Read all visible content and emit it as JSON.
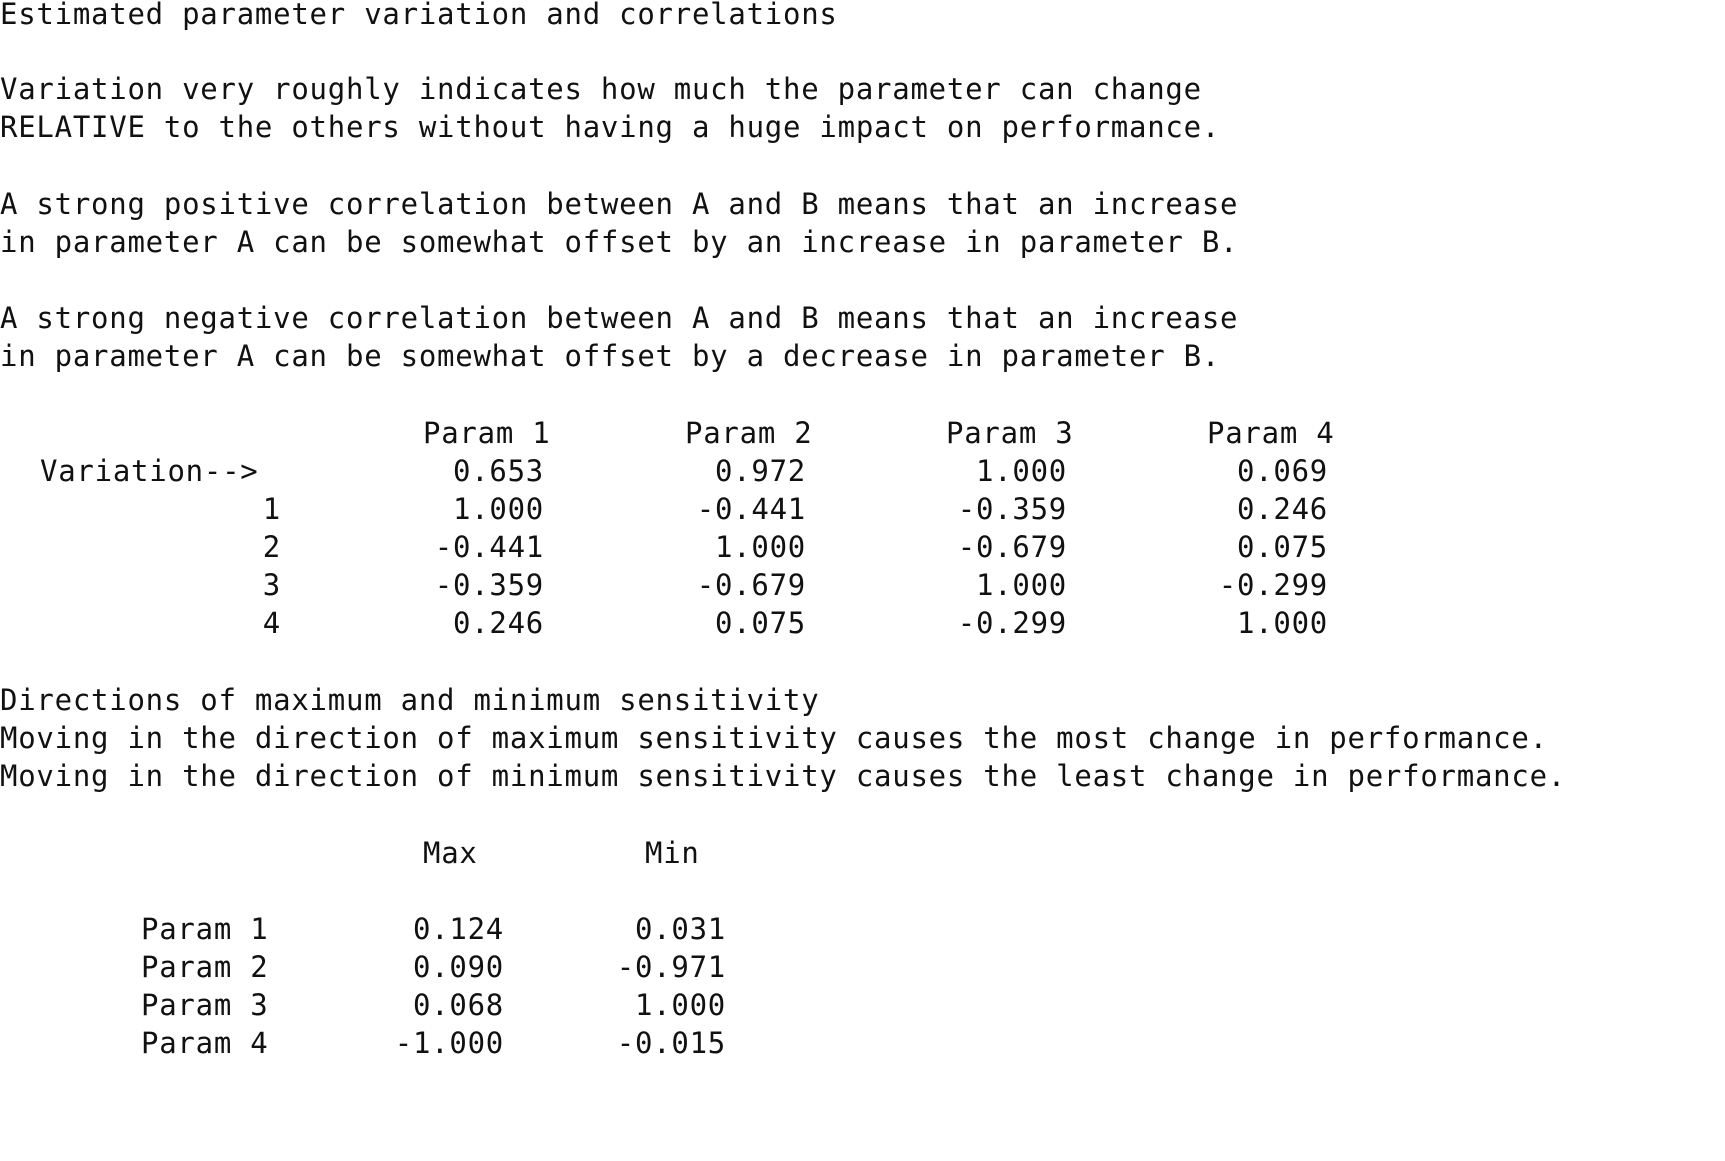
{
  "heading": "Estimated parameter variation and correlations",
  "paragraphs": [
    [
      "Variation very roughly indicates how much the parameter can change",
      "RELATIVE to the others without having a huge impact on performance."
    ],
    [
      "A strong positive correlation between A and B means that an increase",
      "in parameter A can be somewhat offset by an increase in parameter B."
    ],
    [
      "A strong negative correlation between A and B means that an increase",
      "in parameter A can be somewhat offset by a decrease in parameter B."
    ]
  ],
  "correlation_table": {
    "headers": [
      "Param 1",
      "Param 2",
      "Param 3",
      "Param 4"
    ],
    "variation_label": "Variation-->",
    "variation": [
      "0.653",
      "0.972",
      "1.000",
      "0.069"
    ],
    "rows": [
      {
        "label": "1",
        "values": [
          "1.000",
          "-0.441",
          "-0.359",
          "0.246"
        ]
      },
      {
        "label": "2",
        "values": [
          "-0.441",
          "1.000",
          "-0.679",
          "0.075"
        ]
      },
      {
        "label": "3",
        "values": [
          "-0.359",
          "-0.679",
          "1.000",
          "-0.299"
        ]
      },
      {
        "label": "4",
        "values": [
          "0.246",
          "0.075",
          "-0.299",
          "1.000"
        ]
      }
    ]
  },
  "sensitivity": {
    "title": "Directions of maximum and minimum sensitivity",
    "lines": [
      "Moving in the direction of maximum sensitivity causes the most change in performance.",
      "Moving in the direction of minimum sensitivity causes the least change in performance."
    ],
    "headers": [
      "Max",
      "Min"
    ],
    "rows": [
      {
        "label": "Param 1",
        "max": "0.124",
        "min": "0.031"
      },
      {
        "label": "Param 2",
        "max": "0.090",
        "min": "-0.971"
      },
      {
        "label": "Param 3",
        "max": "0.068",
        "min": "1.000"
      },
      {
        "label": "Param 4",
        "max": "-1.000",
        "min": "-0.015"
      }
    ]
  }
}
